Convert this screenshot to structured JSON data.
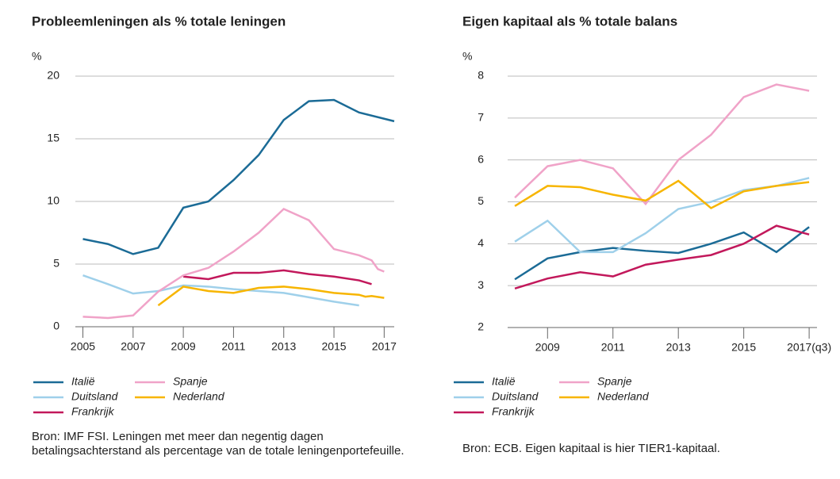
{
  "chart_data": [
    {
      "type": "line",
      "title": "Probleemleningen als % totale leningen",
      "y_unit": "%",
      "xlim": [
        2004.7,
        2017.4
      ],
      "xticks": [
        2005,
        2007,
        2009,
        2011,
        2013,
        2015,
        2017
      ],
      "ylim": [
        0,
        20
      ],
      "yticks": [
        0,
        5,
        10,
        15,
        20
      ],
      "grid": true,
      "series": [
        {
          "name": "Italië",
          "color": "#1b6b96",
          "x": [
            2005,
            2006,
            2007,
            2008,
            2009,
            2010,
            2011,
            2012,
            2013,
            2014,
            2015,
            2016,
            2017.4
          ],
          "values": [
            7.0,
            6.6,
            5.8,
            6.3,
            9.5,
            10.0,
            11.7,
            13.7,
            16.5,
            18.0,
            18.1,
            17.1,
            16.4
          ]
        },
        {
          "name": "Duitsland",
          "color": "#9fd0ea",
          "x": [
            2005,
            2006,
            2007,
            2008,
            2009,
            2010,
            2011,
            2012,
            2013,
            2014,
            2015,
            2016
          ],
          "values": [
            4.1,
            3.4,
            2.65,
            2.85,
            3.3,
            3.2,
            3.0,
            2.85,
            2.7,
            2.35,
            2.0,
            1.7
          ]
        },
        {
          "name": "Frankrijk",
          "color": "#c2185b",
          "x": [
            2009,
            2010,
            2011,
            2012,
            2013,
            2014,
            2015,
            2016,
            2016.5
          ],
          "values": [
            4.0,
            3.8,
            4.3,
            4.3,
            4.5,
            4.2,
            4.0,
            3.7,
            3.4
          ]
        },
        {
          "name": "Spanje",
          "color": "#f0a3c8",
          "x": [
            2005,
            2006,
            2007,
            2008,
            2009,
            2010,
            2011,
            2012,
            2013,
            2014,
            2015,
            2016,
            2016.5,
            2016.75,
            2017
          ],
          "values": [
            0.8,
            0.7,
            0.9,
            2.8,
            4.1,
            4.7,
            6.0,
            7.5,
            9.4,
            8.5,
            6.2,
            5.7,
            5.3,
            4.6,
            4.4
          ]
        },
        {
          "name": "Nederland",
          "color": "#f7b500",
          "x": [
            2008,
            2009,
            2010,
            2011,
            2012,
            2013,
            2014,
            2015,
            2016,
            2016.25,
            2016.5,
            2017
          ],
          "values": [
            1.7,
            3.2,
            2.85,
            2.7,
            3.1,
            3.2,
            3.0,
            2.7,
            2.55,
            2.4,
            2.45,
            2.3
          ]
        }
      ],
      "source": "Bron: IMF FSI. Leningen met meer dan negentig dagen betalingsachterstand als percentage van de totale leningenportefeuille."
    },
    {
      "type": "line",
      "title": "Eigen kapitaal als % totale balans",
      "y_unit": "%",
      "xlim": [
        2007.78,
        2017.24
      ],
      "xticks": [
        2009,
        2011,
        2013,
        2015,
        {
          "value": 2017,
          "label": "2017(q3)"
        }
      ],
      "ylim": [
        2,
        8
      ],
      "yticks": [
        2,
        3,
        4,
        5,
        6,
        7,
        8
      ],
      "grid": true,
      "series": [
        {
          "name": "Italië",
          "color": "#1b6b96",
          "x": [
            2008,
            2009,
            2010,
            2011,
            2012,
            2013,
            2014,
            2015,
            2016,
            2017
          ],
          "values": [
            3.15,
            3.65,
            3.8,
            3.9,
            3.83,
            3.78,
            4.0,
            4.27,
            3.8,
            4.4
          ]
        },
        {
          "name": "Duitsland",
          "color": "#9fd0ea",
          "x": [
            2008,
            2009,
            2010,
            2011,
            2012,
            2013,
            2014,
            2015,
            2016,
            2017
          ],
          "values": [
            4.05,
            4.55,
            3.8,
            3.8,
            4.25,
            4.83,
            5.0,
            5.28,
            5.38,
            5.57
          ]
        },
        {
          "name": "Frankrijk",
          "color": "#c2185b",
          "x": [
            2008,
            2009,
            2010,
            2011,
            2012,
            2013,
            2014,
            2015,
            2016,
            2017
          ],
          "values": [
            2.93,
            3.17,
            3.32,
            3.22,
            3.5,
            3.62,
            3.73,
            4.0,
            4.43,
            4.22
          ]
        },
        {
          "name": "Spanje",
          "color": "#f0a3c8",
          "x": [
            2008,
            2009,
            2010,
            2011,
            2012,
            2013,
            2014,
            2015,
            2016,
            2017
          ],
          "values": [
            5.1,
            5.85,
            6.0,
            5.8,
            4.95,
            6.0,
            6.6,
            7.5,
            7.8,
            7.65
          ]
        },
        {
          "name": "Nederland",
          "color": "#f7b500",
          "x": [
            2008,
            2009,
            2010,
            2011,
            2012,
            2013,
            2014,
            2015,
            2016,
            2017
          ],
          "values": [
            4.9,
            5.38,
            5.35,
            5.17,
            5.03,
            5.5,
            4.85,
            5.25,
            5.38,
            5.47
          ]
        }
      ],
      "source": "Bron: ECB. Eigen kapitaal is hier TIER1-kapitaal."
    }
  ]
}
